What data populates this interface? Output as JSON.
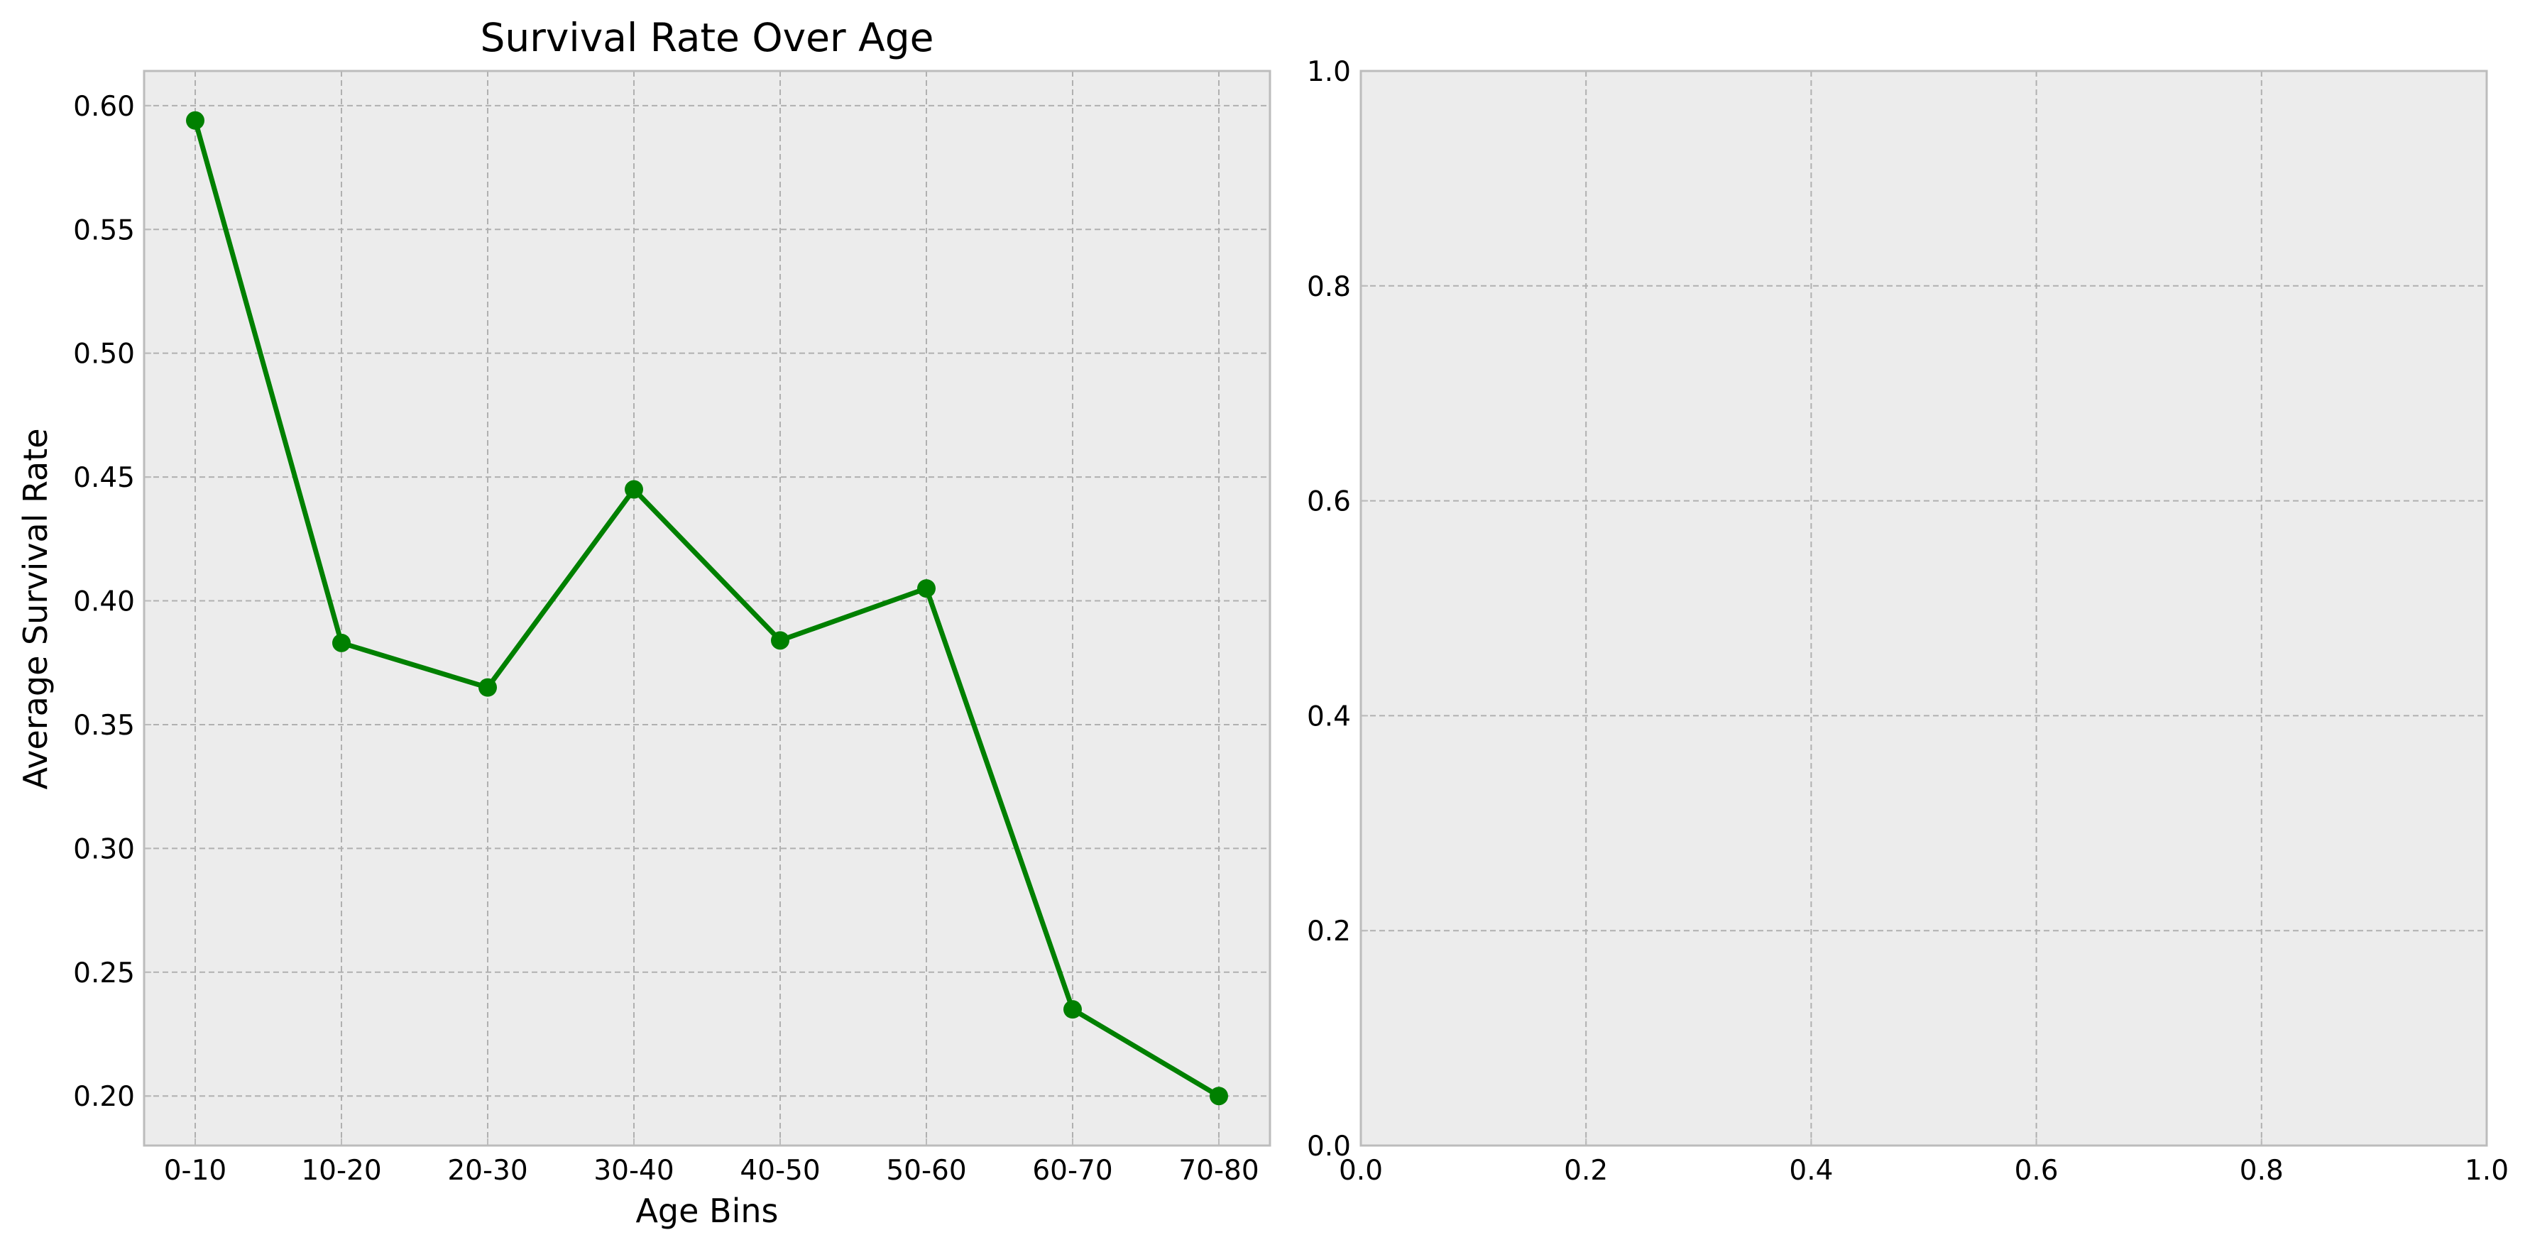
{
  "colors": {
    "figure_background": "#ffffff",
    "axes_background": "#ececec",
    "grid": "#b0b0b0",
    "spine": "#bcbcbc",
    "line": "#008000",
    "text": "#000000"
  },
  "chart_data": [
    {
      "type": "line",
      "title": "Survival Rate Over Age",
      "xlabel": "Age Bins",
      "ylabel": "Average Survival Rate",
      "categories": [
        "0-10",
        "10-20",
        "20-30",
        "30-40",
        "40-50",
        "50-60",
        "60-70",
        "70-80"
      ],
      "series": [
        {
          "values": [
            0.594,
            0.383,
            0.365,
            0.445,
            0.384,
            0.405,
            0.235,
            0.2
          ],
          "color": "#008000",
          "marker": "circle"
        }
      ],
      "ylim": [
        0.18,
        0.614
      ],
      "yticks": [
        0.2,
        0.25,
        0.3,
        0.35,
        0.4,
        0.45,
        0.5,
        0.55,
        0.6
      ],
      "ytick_labels": [
        "0.20",
        "0.25",
        "0.30",
        "0.35",
        "0.40",
        "0.45",
        "0.50",
        "0.55",
        "0.60"
      ],
      "grid": true,
      "grid_style": "dashed"
    },
    {
      "type": "line",
      "title": "",
      "xlabel": "",
      "ylabel": "",
      "series": [],
      "xlim": [
        0,
        1
      ],
      "ylim": [
        0,
        1
      ],
      "xticks": [
        0,
        0.2,
        0.4,
        0.6,
        0.8,
        1.0
      ],
      "xtick_labels": [
        "0.0",
        "0.2",
        "0.4",
        "0.6",
        "0.8",
        "1.0"
      ],
      "yticks": [
        0,
        0.2,
        0.4,
        0.6,
        0.8,
        1.0
      ],
      "ytick_labels": [
        "0.0",
        "0.2",
        "0.4",
        "0.6",
        "0.8",
        "1.0"
      ],
      "grid": true,
      "grid_style": "dashed"
    }
  ]
}
